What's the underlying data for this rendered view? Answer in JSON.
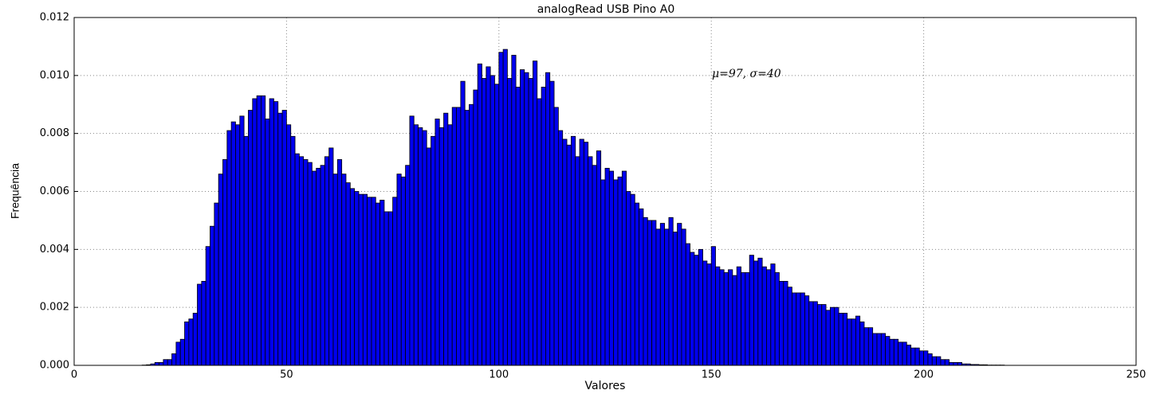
{
  "chart_data": {
    "type": "histogram",
    "title": "analogRead USB Pino A0",
    "xlabel": "Valores",
    "ylabel": "Frequência",
    "annotation": "μ=97, σ=40",
    "color": "#0000ee",
    "grid": true,
    "xlim": [
      0,
      250
    ],
    "xticks": [
      0,
      50,
      100,
      150,
      200,
      250
    ],
    "ylim": [
      0,
      0.012
    ],
    "yticks": [
      {
        "value": 0,
        "label": "0.000"
      },
      {
        "value": 0.002,
        "label": "0.002"
      },
      {
        "value": 0.004,
        "label": "0.004"
      },
      {
        "value": 0.006,
        "label": "0.006"
      },
      {
        "value": 0.008,
        "label": "0.008"
      },
      {
        "value": 0.01,
        "label": "0.010"
      },
      {
        "value": 0.012,
        "label": "0.012"
      }
    ],
    "bins": [
      16,
      17,
      18,
      19,
      20,
      21,
      22,
      23,
      24,
      25,
      26,
      27,
      28,
      29,
      30,
      31,
      32,
      33,
      34,
      35,
      36,
      37,
      38,
      39,
      40,
      41,
      42,
      43,
      44,
      45,
      46,
      47,
      48,
      49,
      50,
      51,
      52,
      53,
      54,
      55,
      56,
      57,
      58,
      59,
      60,
      61,
      62,
      63,
      64,
      65,
      66,
      67,
      68,
      69,
      70,
      71,
      72,
      73,
      74,
      75,
      76,
      77,
      78,
      79,
      80,
      81,
      82,
      83,
      84,
      85,
      86,
      87,
      88,
      89,
      90,
      91,
      92,
      93,
      94,
      95,
      96,
      97,
      98,
      99,
      100,
      101,
      102,
      103,
      104,
      105,
      106,
      107,
      108,
      109,
      110,
      111,
      112,
      113,
      114,
      115,
      116,
      117,
      118,
      119,
      120,
      121,
      122,
      123,
      124,
      125,
      126,
      127,
      128,
      129,
      130,
      131,
      132,
      133,
      134,
      135,
      136,
      137,
      138,
      139,
      140,
      141,
      142,
      143,
      144,
      145,
      146,
      147,
      148,
      149,
      150,
      151,
      152,
      153,
      154,
      155,
      156,
      157,
      158,
      159,
      160,
      161,
      162,
      163,
      164,
      165,
      166,
      167,
      168,
      169,
      170,
      171,
      172,
      173,
      174,
      175,
      176,
      177,
      178,
      179,
      180,
      181,
      182,
      183,
      184,
      185,
      186,
      187,
      188,
      189,
      190,
      191,
      192,
      193,
      194,
      195,
      196,
      197,
      198,
      199,
      200,
      201,
      202,
      203,
      204,
      205,
      206,
      207,
      208,
      209,
      210,
      211,
      212,
      213,
      214,
      215,
      216,
      217,
      218,
      219
    ],
    "values": [
      1e-05,
      2e-05,
      5e-05,
      0.0001,
      0.0001,
      0.0002,
      0.0002,
      0.0004,
      0.0008,
      0.0009,
      0.0015,
      0.0016,
      0.0018,
      0.0028,
      0.0029,
      0.0041,
      0.0048,
      0.0056,
      0.0066,
      0.0071,
      0.0081,
      0.0084,
      0.0083,
      0.0086,
      0.0079,
      0.0088,
      0.0092,
      0.0093,
      0.0093,
      0.0085,
      0.0092,
      0.0091,
      0.0087,
      0.0088,
      0.0083,
      0.0079,
      0.0073,
      0.0072,
      0.0071,
      0.007,
      0.0067,
      0.0068,
      0.0069,
      0.0072,
      0.0075,
      0.0066,
      0.0071,
      0.0066,
      0.0063,
      0.0061,
      0.006,
      0.0059,
      0.0059,
      0.0058,
      0.0058,
      0.0056,
      0.0057,
      0.0053,
      0.0053,
      0.0058,
      0.0066,
      0.0065,
      0.0069,
      0.0086,
      0.0083,
      0.0082,
      0.0081,
      0.0075,
      0.0079,
      0.0085,
      0.0082,
      0.0087,
      0.0083,
      0.0089,
      0.0089,
      0.0098,
      0.0088,
      0.009,
      0.0095,
      0.0104,
      0.0099,
      0.0103,
      0.01,
      0.0097,
      0.0108,
      0.0109,
      0.0099,
      0.0107,
      0.0096,
      0.0102,
      0.0101,
      0.0099,
      0.0105,
      0.0092,
      0.0096,
      0.0101,
      0.0098,
      0.0089,
      0.0081,
      0.0078,
      0.0076,
      0.0079,
      0.0072,
      0.0078,
      0.0077,
      0.0072,
      0.0069,
      0.0074,
      0.0064,
      0.0068,
      0.0067,
      0.0064,
      0.0065,
      0.0067,
      0.006,
      0.0059,
      0.0056,
      0.0054,
      0.0051,
      0.005,
      0.005,
      0.0047,
      0.0049,
      0.0047,
      0.0051,
      0.0046,
      0.0049,
      0.0047,
      0.0042,
      0.0039,
      0.0038,
      0.004,
      0.0036,
      0.0035,
      0.0041,
      0.0034,
      0.0033,
      0.0032,
      0.0033,
      0.0031,
      0.0034,
      0.0032,
      0.0032,
      0.0038,
      0.0036,
      0.0037,
      0.0034,
      0.0033,
      0.0035,
      0.0032,
      0.0029,
      0.0029,
      0.0027,
      0.0025,
      0.0025,
      0.0025,
      0.0024,
      0.0022,
      0.0022,
      0.0021,
      0.0021,
      0.0019,
      0.002,
      0.002,
      0.0018,
      0.0018,
      0.0016,
      0.0016,
      0.0017,
      0.0015,
      0.0013,
      0.0013,
      0.0011,
      0.0011,
      0.0011,
      0.001,
      0.0009,
      0.0009,
      0.0008,
      0.0008,
      0.0007,
      0.0006,
      0.0006,
      0.0005,
      0.0005,
      0.0004,
      0.0003,
      0.0003,
      0.0002,
      0.0002,
      0.0001,
      0.0001,
      0.0001,
      5e-05,
      5e-05,
      3e-05,
      3e-05,
      2e-05,
      2e-05,
      1e-05,
      1e-05,
      1e-05,
      1e-05
    ]
  }
}
